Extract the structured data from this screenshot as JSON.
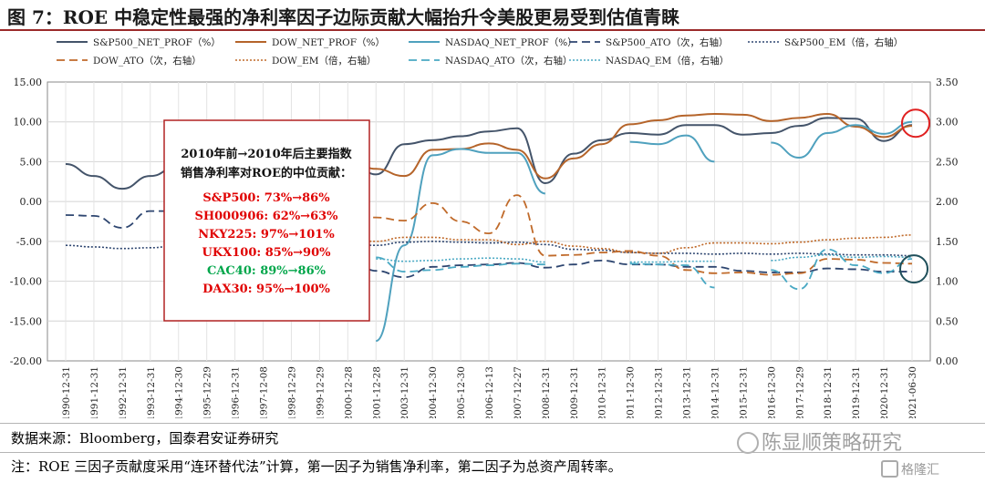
{
  "title": "图 7：ROE 中稳定性最强的净利率因子边际贡献大幅抬升令美股更易受到估值青睐",
  "source": "数据来源：Bloomberg，国泰君安证券研究",
  "note": "注：ROE 三因子贡献度采用“连环替代法”计算，第一因子为销售净利率，第二因子为总资产周转率。",
  "watermark": "陈显顺策略研究",
  "logo": "格隆汇",
  "annotation": {
    "title_line1": "2010年前→2010年后主要指数",
    "title_line2": "销售净利率对ROE的中位贡献：",
    "items": [
      {
        "label": "S&P500:   73%→86%",
        "color": "#e00000"
      },
      {
        "label": "SH000906:   62%→63%",
        "color": "#e00000"
      },
      {
        "label": "NKY225:   97%→101%",
        "color": "#e00000"
      },
      {
        "label": "UKX100:   85%→90%",
        "color": "#e00000"
      },
      {
        "label": "CAC40:   89%→86%",
        "color": "#00a64a"
      },
      {
        "label": "DAX30:   95%→100%",
        "color": "#e00000"
      }
    ]
  },
  "chart_data": {
    "type": "line",
    "x": [
      "1990-12-31",
      "1991-12-31",
      "1992-12-31",
      "1993-12-31",
      "1994-12-30",
      "1995-12-29",
      "1996-12-31",
      "1997-12-08",
      "1998-12-29",
      "1999-12-29",
      "2000-12-28",
      "2001-12-28",
      "2003-12-31",
      "2004-12-30",
      "2005-12-30",
      "2006-12-13",
      "2007-12-27",
      "2008-12-31",
      "2009-12-31",
      "2010-12-31",
      "2011-12-30",
      "2012-12-31",
      "2013-12-31",
      "2014-12-31",
      "2015-12-31",
      "2016-12-30",
      "2017-12-29",
      "2018-12-31",
      "2019-12-31",
      "2020-12-31",
      "2021-06-30"
    ],
    "ylim_left": [
      -20,
      15
    ],
    "ylim_right": [
      0,
      3.5
    ],
    "left_ticks": [
      "15.00",
      "10.00",
      "5.00",
      "0.00",
      "-5.00",
      "-10.00",
      "-15.00",
      "-20.00"
    ],
    "right_ticks": [
      "3.50",
      "3.00",
      "2.50",
      "2.00",
      "1.50",
      "1.00",
      "0.50",
      "0.00"
    ],
    "grid": true,
    "legend_position": "top",
    "series": [
      {
        "name": "S&P500_NET_PROF（%）",
        "axis": "left",
        "color": "#44546a",
        "dash": "solid",
        "width": 2,
        "values": [
          4.7,
          3.2,
          1.6,
          3.2,
          4.5,
          null,
          null,
          null,
          null,
          null,
          5.6,
          3.4,
          7.2,
          7.7,
          8.2,
          8.8,
          9.2,
          2.3,
          6.0,
          7.7,
          8.6,
          8.4,
          9.6,
          9.6,
          8.4,
          8.6,
          9.5,
          10.5,
          10.4,
          7.6,
          9.6
        ]
      },
      {
        "name": "DOW_NET_PROF（%）",
        "axis": "left",
        "color": "#b5642a",
        "dash": "solid",
        "width": 2,
        "values": [
          null,
          null,
          null,
          null,
          null,
          null,
          null,
          null,
          null,
          null,
          5.2,
          4.1,
          3.2,
          6.5,
          6.6,
          7.3,
          6.5,
          2.9,
          5.4,
          7.2,
          9.7,
          10.2,
          10.8,
          11.0,
          10.9,
          10.1,
          10.5,
          11.0,
          9.4,
          8.1,
          9.5
        ]
      },
      {
        "name": "NASDAQ_NET_PROF（%）",
        "axis": "left",
        "color": "#4fa1be",
        "dash": "solid",
        "width": 2,
        "values": [
          null,
          null,
          null,
          null,
          null,
          null,
          null,
          null,
          null,
          null,
          null,
          -17.5,
          -5.5,
          5.8,
          6.6,
          6.1,
          6.1,
          1.0,
          null,
          null,
          7.5,
          7.2,
          8.3,
          5.0,
          null,
          7.4,
          5.5,
          8.6,
          9.6,
          8.5,
          10.0
        ]
      },
      {
        "name": "S&P500_ATO（次，右轴）",
        "axis": "right",
        "color": "#2e4670",
        "dash": "9 5",
        "width": 1.8,
        "values": [
          1.83,
          1.82,
          1.67,
          1.88,
          1.88,
          null,
          null,
          null,
          null,
          null,
          1.31,
          1.13,
          1.05,
          1.18,
          1.2,
          1.21,
          1.23,
          1.17,
          1.21,
          1.26,
          1.21,
          1.21,
          1.18,
          1.18,
          1.13,
          1.11,
          1.11,
          1.16,
          1.15,
          1.12,
          1.12
        ]
      },
      {
        "name": "S&P500_EM（倍，右轴）",
        "axis": "right",
        "color": "#2e4670",
        "dash": "2 2",
        "width": 1.6,
        "values": [
          1.45,
          1.43,
          1.41,
          1.42,
          1.45,
          null,
          null,
          null,
          null,
          null,
          1.48,
          1.45,
          1.49,
          1.5,
          1.49,
          1.48,
          1.49,
          1.46,
          1.4,
          1.39,
          1.36,
          1.35,
          1.35,
          1.34,
          1.35,
          1.34,
          1.35,
          1.34,
          1.33,
          1.33,
          1.32
        ]
      },
      {
        "name": "DOW_ATO（次，右轴）",
        "axis": "right",
        "color": "#c06a2a",
        "dash": "9 5",
        "width": 1.8,
        "values": [
          null,
          null,
          null,
          null,
          null,
          null,
          null,
          null,
          null,
          null,
          1.82,
          1.8,
          1.76,
          1.98,
          1.75,
          1.6,
          2.08,
          1.32,
          1.33,
          1.36,
          1.38,
          1.32,
          1.14,
          1.1,
          1.11,
          1.08,
          1.1,
          1.28,
          1.27,
          1.23,
          1.22
        ]
      },
      {
        "name": "DOW_EM（倍，右轴）",
        "axis": "right",
        "color": "#c06a2a",
        "dash": "2 2",
        "width": 1.6,
        "values": [
          null,
          null,
          null,
          null,
          null,
          null,
          null,
          null,
          null,
          null,
          1.52,
          1.5,
          1.55,
          1.55,
          1.52,
          1.52,
          1.46,
          1.5,
          1.44,
          1.41,
          1.36,
          1.35,
          1.42,
          1.48,
          1.48,
          1.47,
          1.49,
          1.52,
          1.54,
          1.55,
          1.58
        ]
      },
      {
        "name": "NASDAQ_ATO（次，右轴）",
        "axis": "right",
        "color": "#4aa9c4",
        "dash": "9 5",
        "width": 1.8,
        "values": [
          null,
          null,
          null,
          null,
          null,
          null,
          null,
          null,
          null,
          null,
          null,
          1.3,
          1.12,
          1.14,
          1.18,
          1.2,
          1.22,
          1.21,
          null,
          null,
          1.22,
          1.21,
          1.2,
          0.92,
          null,
          1.14,
          0.9,
          1.4,
          1.2,
          1.1,
          1.28
        ]
      },
      {
        "name": "NASDAQ_EM（倍，右轴）",
        "axis": "right",
        "color": "#4aa9c4",
        "dash": "2 2",
        "width": 1.6,
        "values": [
          null,
          null,
          null,
          null,
          null,
          null,
          null,
          null,
          null,
          null,
          null,
          1.28,
          1.25,
          1.26,
          1.28,
          1.29,
          1.28,
          1.24,
          null,
          null,
          1.24,
          1.24,
          1.25,
          1.25,
          null,
          1.26,
          1.3,
          1.33,
          1.3,
          1.31,
          1.3
        ]
      }
    ]
  }
}
